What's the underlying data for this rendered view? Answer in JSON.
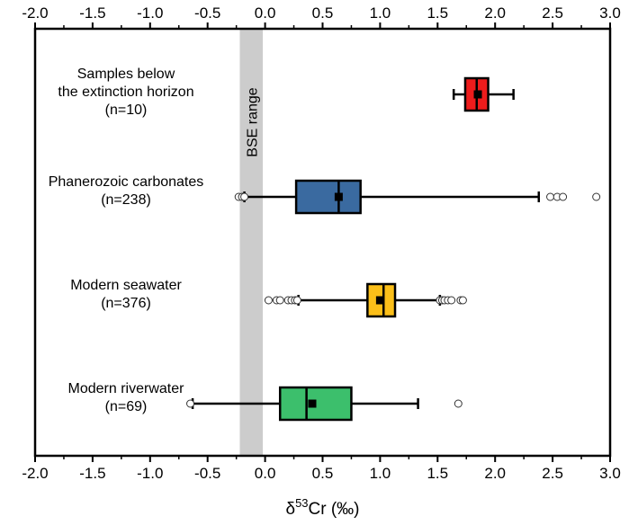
{
  "chart_data": {
    "type": "boxplot",
    "orientation": "horizontal",
    "x_axis": {
      "title_main": "δ",
      "title_sup": "53",
      "title_rest": "Cr (‰)",
      "range": [
        -2.0,
        3.0
      ],
      "ticks": [
        -2.0,
        -1.5,
        -1.0,
        -0.5,
        0.0,
        0.5,
        1.0,
        1.5,
        2.0,
        2.5,
        3.0
      ],
      "tick_labels": [
        "-2.0",
        "-1.5",
        "-1.0",
        "-0.5",
        "0.0",
        "0.5",
        "1.0",
        "1.5",
        "2.0",
        "2.5",
        "3.0"
      ],
      "mirrored_top": true
    },
    "reference_band": {
      "label": "BSE range",
      "from": -0.22,
      "to": -0.02,
      "color": "#cccccc"
    },
    "groups": [
      {
        "label_lines": [
          "Samples below",
          "the extinction horizon",
          "(n=10)"
        ],
        "color": "#ee1c1c",
        "whisker_low": 1.64,
        "q1": 1.74,
        "median": 1.84,
        "q3": 1.94,
        "whisker_high": 2.16,
        "mean": 1.85,
        "outliers": []
      },
      {
        "label_lines": [
          "Phanerozoic carbonates",
          "(n=238)"
        ],
        "color": "#3a6aa0",
        "whisker_low": -0.18,
        "q1": 0.27,
        "median": 0.64,
        "q3": 0.83,
        "whisker_high": 2.38,
        "mean": 0.64,
        "outliers": [
          -0.23,
          -0.2,
          -0.18,
          2.48,
          2.54,
          2.59,
          2.88
        ]
      },
      {
        "label_lines": [
          "Modern seawater",
          "(n=376)"
        ],
        "color": "#fbbf19",
        "whisker_low": 0.29,
        "q1": 0.89,
        "median": 1.03,
        "q3": 1.13,
        "whisker_high": 1.52,
        "mean": 1.0,
        "outliers": [
          0.03,
          0.1,
          0.13,
          0.2,
          0.23,
          0.26,
          0.28,
          1.52,
          1.54,
          1.56,
          1.59,
          1.62,
          1.7,
          1.72
        ]
      },
      {
        "label_lines": [
          "Modern riverwater",
          "(n=69)"
        ],
        "color": "#3cbf6c",
        "whisker_low": -0.63,
        "q1": 0.13,
        "median": 0.36,
        "q3": 0.75,
        "whisker_high": 1.33,
        "mean": 0.41,
        "outliers": [
          -0.65,
          1.68
        ]
      }
    ]
  }
}
